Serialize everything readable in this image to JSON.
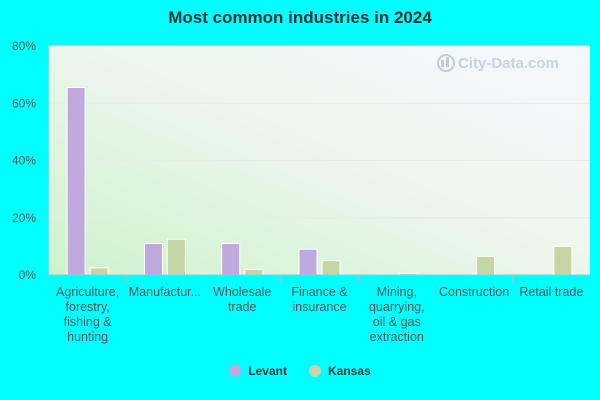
{
  "chart_data": {
    "type": "bar",
    "title": "Most common industries in 2024",
    "categories": [
      [
        "Agriculture,",
        "forestry,",
        "fishing &",
        "hunting"
      ],
      [
        "Manufactur..."
      ],
      [
        "Wholesale",
        "trade"
      ],
      [
        "Finance &",
        "insurance"
      ],
      [
        "Mining,",
        "quarrying,",
        "oil & gas",
        "extraction"
      ],
      [
        "Construction"
      ],
      [
        "Retail trade"
      ]
    ],
    "series": [
      {
        "name": "Levant",
        "color": "#c0a9de",
        "values": [
          65.5,
          11.0,
          11.0,
          9.0,
          0.0,
          0.0,
          0.0
        ]
      },
      {
        "name": "Kansas",
        "color": "#c5d6a6",
        "values": [
          2.5,
          12.5,
          2.0,
          5.0,
          0.6,
          6.5,
          10.0
        ]
      }
    ],
    "ylim": [
      0,
      80
    ],
    "yticks": [
      "0%",
      "20%",
      "40%",
      "60%",
      "80%"
    ],
    "ytick_values": [
      0,
      20,
      40,
      60,
      80
    ],
    "legend_position": "bottom",
    "grid": true
  }
}
